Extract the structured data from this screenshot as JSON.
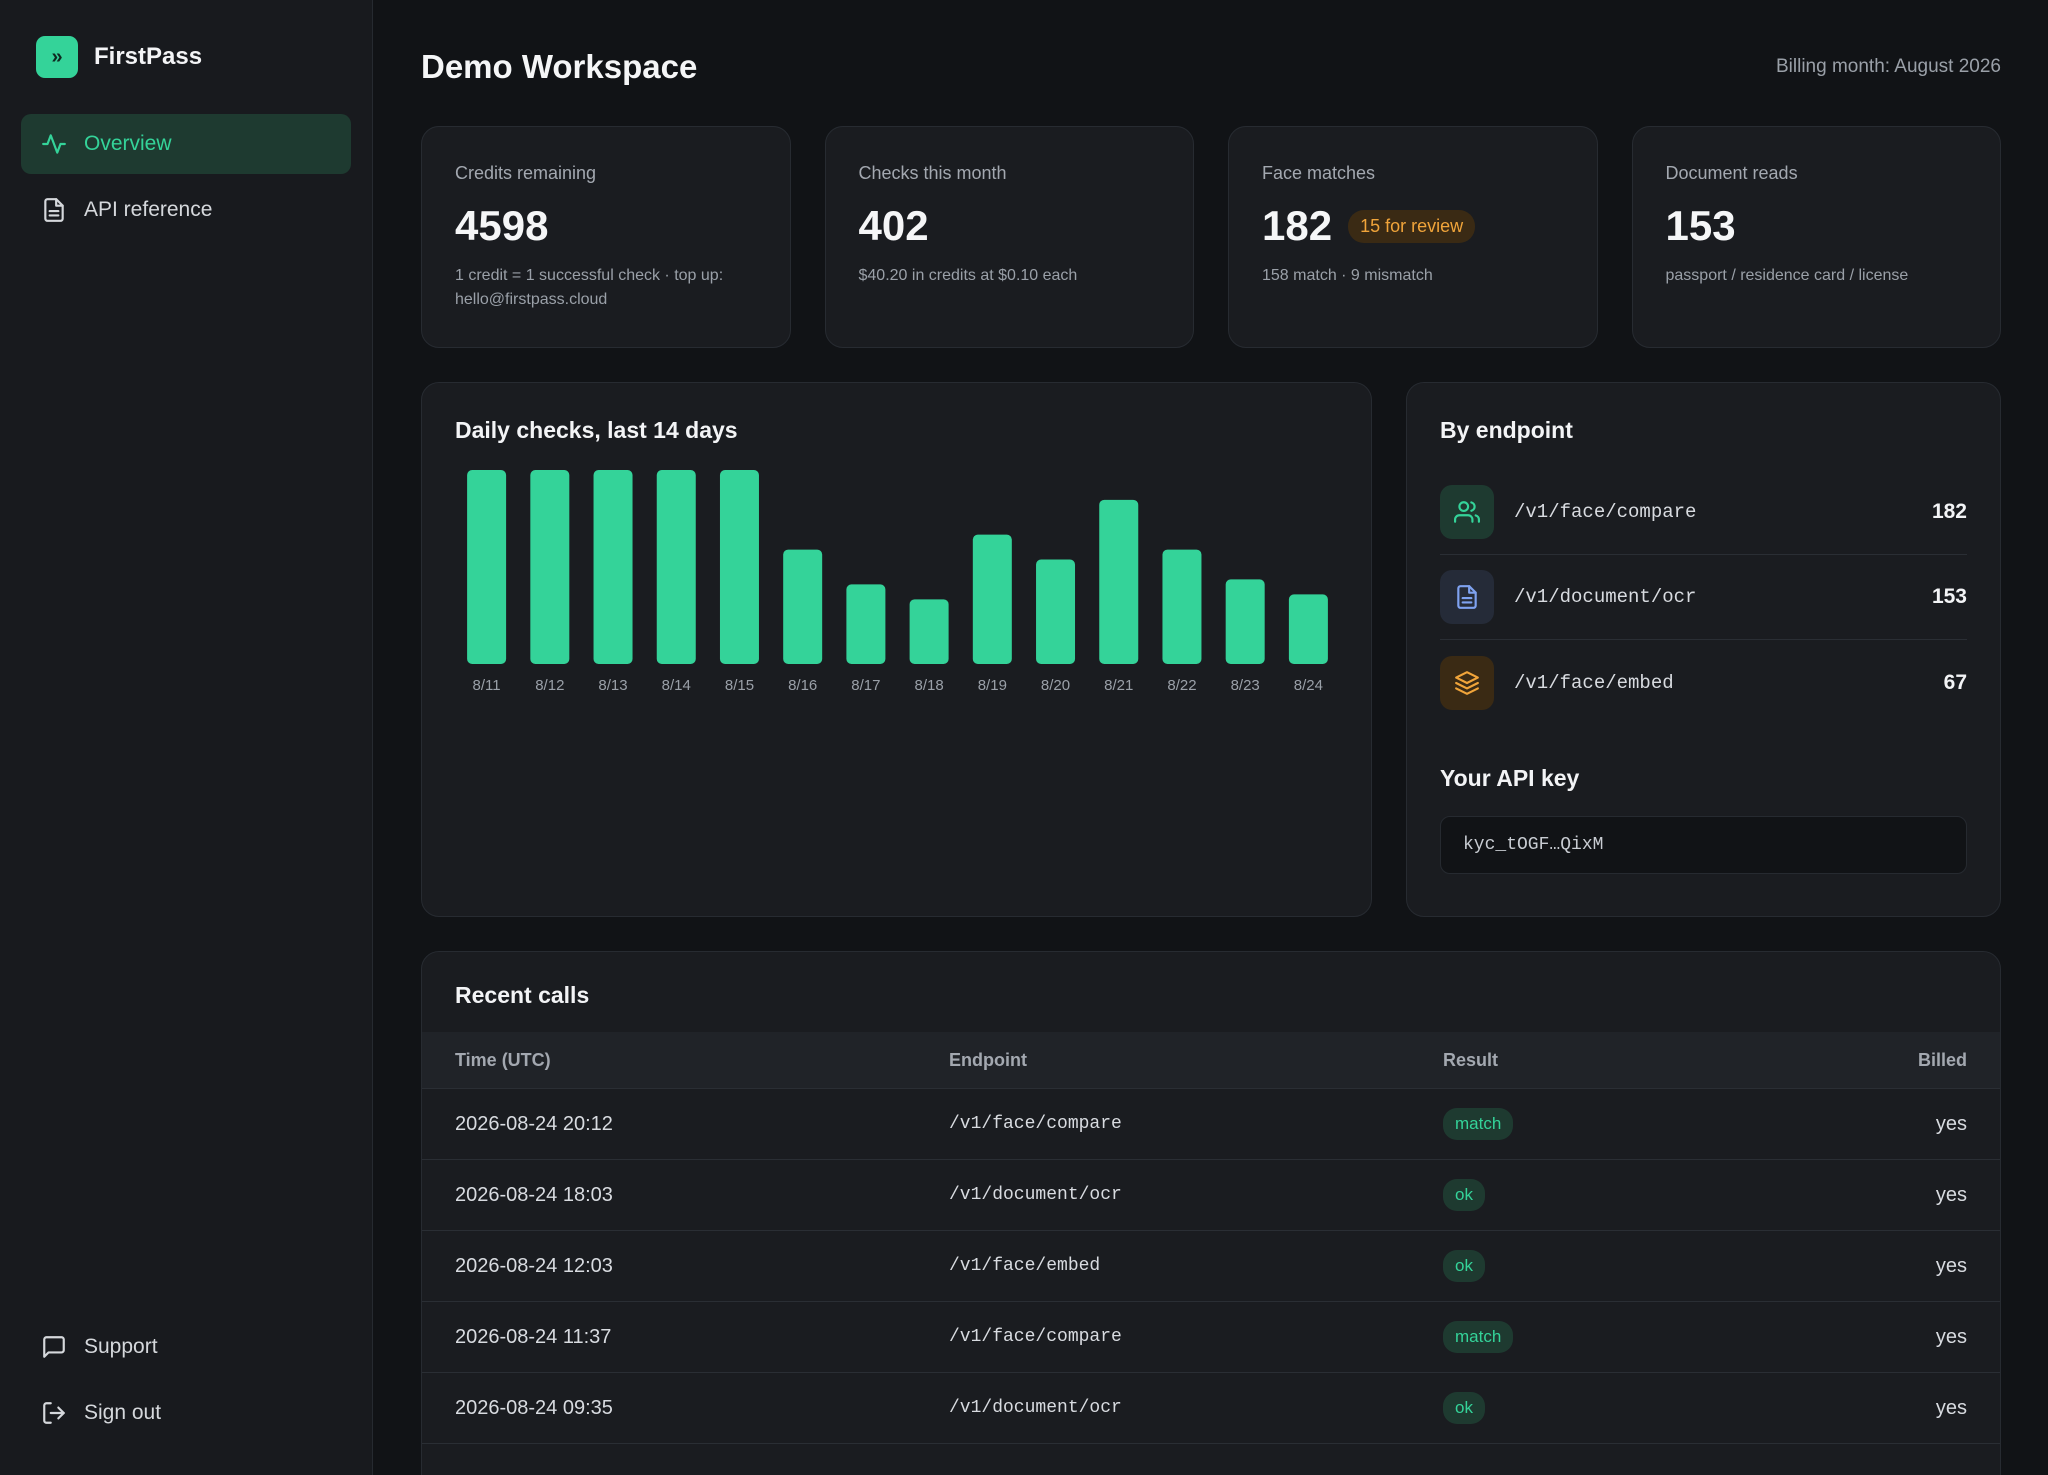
{
  "brand": {
    "name": "FirstPass",
    "logo_glyph": "»",
    "accent": "#34d399"
  },
  "nav": {
    "items": [
      {
        "label": "Overview",
        "icon": "activity-icon",
        "active": true
      },
      {
        "label": "API reference",
        "icon": "document-icon",
        "active": false
      }
    ],
    "bottom": [
      {
        "label": "Support",
        "icon": "chat-icon"
      },
      {
        "label": "Sign out",
        "icon": "sign-out-icon"
      }
    ]
  },
  "header": {
    "title": "Demo Workspace",
    "billing": "Billing month: August 2026"
  },
  "stats": [
    {
      "label": "Credits remaining",
      "value": "4598",
      "sub": "1 credit = 1 successful check · top up: hello@firstpass.cloud"
    },
    {
      "label": "Checks this month",
      "value": "402",
      "sub": "$40.20 in credits at $0.10 each"
    },
    {
      "label": "Face matches",
      "value": "182",
      "badge": "15 for review",
      "sub": "158 match · 9 mismatch"
    },
    {
      "label": "Document reads",
      "value": "153",
      "sub": "passport / residence card / license"
    }
  ],
  "chart_data": {
    "type": "bar",
    "title": "Daily checks, last 14 days",
    "categories": [
      "8/11",
      "8/12",
      "8/13",
      "8/14",
      "8/15",
      "8/16",
      "8/17",
      "8/18",
      "8/19",
      "8/20",
      "8/21",
      "8/22",
      "8/23",
      "8/24"
    ],
    "values": [
      39,
      39,
      39,
      39,
      39,
      23,
      16,
      13,
      26,
      21,
      33,
      23,
      17,
      14
    ],
    "color": "#34d399",
    "grid": false
  },
  "endpoints": {
    "title": "By endpoint",
    "items": [
      {
        "path": "/v1/face/compare",
        "count": "182",
        "icon": "users-icon",
        "icon_color": "#34d399",
        "icon_bg": "#1e3a30"
      },
      {
        "path": "/v1/document/ocr",
        "count": "153",
        "icon": "document-icon",
        "icon_color": "#7fa2f0",
        "icon_bg": "#252b38"
      },
      {
        "path": "/v1/face/embed",
        "count": "67",
        "icon": "layers-icon",
        "icon_color": "#f0a43a",
        "icon_bg": "#3a2a14"
      }
    ]
  },
  "api_key": {
    "title": "Your API key",
    "value": "kyc_tOGF…QixM"
  },
  "recent_calls": {
    "title": "Recent calls",
    "columns": [
      "Time (UTC)",
      "Endpoint",
      "Result",
      "Billed"
    ],
    "rows": [
      {
        "time": "2026-08-24 20:12",
        "endpoint": "/v1/face/compare",
        "result": "match",
        "billed": "yes"
      },
      {
        "time": "2026-08-24 18:03",
        "endpoint": "/v1/document/ocr",
        "result": "ok",
        "billed": "yes"
      },
      {
        "time": "2026-08-24 12:03",
        "endpoint": "/v1/face/embed",
        "result": "ok",
        "billed": "yes"
      },
      {
        "time": "2026-08-24 11:37",
        "endpoint": "/v1/face/compare",
        "result": "match",
        "billed": "yes"
      },
      {
        "time": "2026-08-24 09:35",
        "endpoint": "/v1/document/ocr",
        "result": "ok",
        "billed": "yes"
      }
    ]
  }
}
